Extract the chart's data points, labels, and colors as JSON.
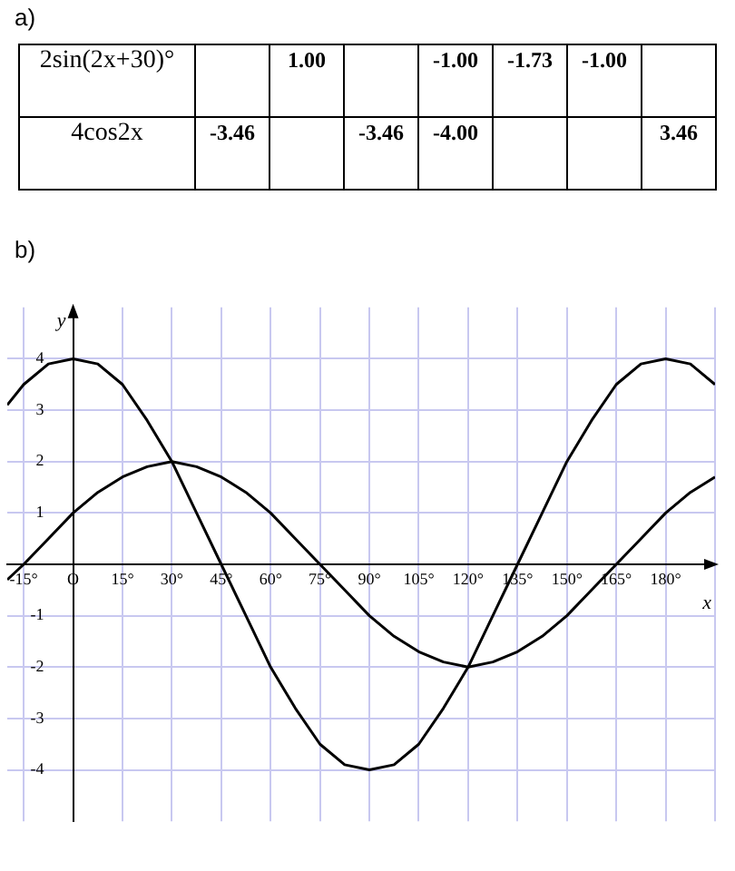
{
  "chart_data": [
    {
      "type": "other",
      "title": "a)",
      "y_categories": [
        "2sin(2x+30)°",
        "4cos2x"
      ],
      "cell_labels": [
        [
          null,
          "1.00",
          null,
          "-1.00",
          "-1.73",
          "-1.00",
          null
        ],
        [
          "-3.46",
          null,
          "-3.46",
          "-4.00",
          null,
          null,
          "3.46"
        ]
      ]
    },
    {
      "type": "line",
      "title": "b)",
      "xlabel": "x",
      "ylabel": "y",
      "x": [
        -20,
        -15,
        -7.5,
        0,
        7.5,
        15,
        22.5,
        30,
        37.5,
        45,
        52.5,
        60,
        67.5,
        75,
        82.5,
        90,
        97.5,
        105,
        112.5,
        120,
        127.5,
        135,
        142.5,
        150,
        157.5,
        165,
        172.5,
        180,
        187.5,
        195
      ],
      "series": [
        {
          "color": "#000000",
          "values": [
            -0.3,
            0,
            0.5,
            1,
            1.4,
            1.7,
            1.9,
            2,
            1.9,
            1.7,
            1.4,
            1,
            0.5,
            0,
            -0.5,
            -1,
            -1.4,
            -1.7,
            -1.9,
            -2,
            -1.9,
            -1.7,
            -1.4,
            -1,
            -0.5,
            0,
            0.5,
            1,
            1.4,
            1.7
          ]
        },
        {
          "color": "#000000",
          "values": [
            3.1,
            3.5,
            3.9,
            4,
            3.9,
            3.5,
            2.8,
            2,
            1,
            0,
            -1,
            -2,
            -2.8,
            -3.5,
            -3.9,
            -4,
            -3.9,
            -3.5,
            -2.8,
            -2,
            -1,
            0,
            1,
            2,
            2.8,
            3.5,
            3.9,
            4,
            3.9,
            3.5
          ]
        }
      ],
      "xlim": [
        -20,
        195
      ],
      "ylim": [
        -5,
        5
      ],
      "xticks": [
        {
          "value": -15,
          "label": "-15°"
        },
        {
          "value": 0,
          "label": "O"
        },
        {
          "value": 15,
          "label": "15°"
        },
        {
          "value": 30,
          "label": "30°"
        },
        {
          "value": 45,
          "label": "45°"
        },
        {
          "value": 60,
          "label": "60°"
        },
        {
          "value": 75,
          "label": "75°"
        },
        {
          "value": 90,
          "label": "90°"
        },
        {
          "value": 105,
          "label": "105°"
        },
        {
          "value": 120,
          "label": "120°"
        },
        {
          "value": 135,
          "label": "135°"
        },
        {
          "value": 150,
          "label": "150°"
        },
        {
          "value": 165,
          "label": "165°"
        },
        {
          "value": 180,
          "label": "180°"
        },
        {
          "value": 195,
          "label": null
        }
      ],
      "yticks": [
        -4,
        -3,
        -2,
        -1,
        {
          "value": 0,
          "label": null
        },
        1,
        2,
        3,
        4
      ],
      "grid": true,
      "legend": false,
      "marker": "none",
      "line_style": "solid"
    }
  ]
}
